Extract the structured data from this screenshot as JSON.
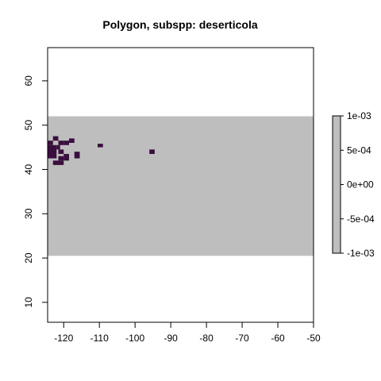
{
  "chart_data": {
    "type": "heatmap",
    "title": "Polygon, subspp: deserticola",
    "xlabel": "",
    "ylabel": "",
    "xlim": [
      -124.5,
      -50
    ],
    "ylim": [
      5.5,
      67.5
    ],
    "x_ticks": [
      -120,
      -110,
      -100,
      -90,
      -80,
      -70,
      -60,
      -50
    ],
    "y_ticks": [
      10,
      20,
      30,
      40,
      50,
      60
    ],
    "x_tick_labels": [
      "-120",
      "-110",
      "-100",
      "-90",
      "-80",
      "-70",
      "-60",
      "-50"
    ],
    "y_tick_labels": [
      "10",
      "20",
      "30",
      "40",
      "50",
      "60"
    ],
    "grid": false,
    "raster_extent": {
      "xmin": -124.5,
      "xmax": -50,
      "ymin": 20.5,
      "ymax": 52
    },
    "background_value": 0,
    "background_color": "#bebebe",
    "presence_color": "#3a0f3e",
    "presence_color_alt": "#440154",
    "presence_cells": [
      {
        "x0": -124.5,
        "x1": -123,
        "y0": 45.5,
        "y1": 46.5
      },
      {
        "x0": -124.5,
        "x1": -122,
        "y0": 42.5,
        "y1": 45.5
      },
      {
        "x0": -122,
        "x1": -121,
        "y0": 44.5,
        "y1": 45.5
      },
      {
        "x0": -123,
        "x1": -121.5,
        "y0": 46.5,
        "y1": 47.5
      },
      {
        "x0": -121.5,
        "x1": -120,
        "y0": 45.5,
        "y1": 46.5
      },
      {
        "x0": -120,
        "x1": -118.5,
        "y0": 45.5,
        "y1": 46.5
      },
      {
        "x0": -118.5,
        "x1": -117,
        "y0": 46,
        "y1": 47
      },
      {
        "x0": -121.5,
        "x1": -120,
        "y0": 43.5,
        "y1": 44.5
      },
      {
        "x0": -121.5,
        "x1": -120,
        "y0": 42,
        "y1": 43
      },
      {
        "x0": -120,
        "x1": -118.5,
        "y0": 42,
        "y1": 43.5
      },
      {
        "x0": -123,
        "x1": -120,
        "y0": 41,
        "y1": 42
      },
      {
        "x0": -117,
        "x1": -115.5,
        "y0": 42.5,
        "y1": 44
      },
      {
        "x0": -110.5,
        "x1": -109,
        "y0": 45,
        "y1": 45.8
      },
      {
        "x0": -96,
        "x1": -94.5,
        "y0": 43.5,
        "y1": 44.5
      }
    ],
    "legend": {
      "position": "right",
      "ticks": [
        "1e-03",
        "5e-04",
        "0e+00",
        "-5e-04",
        "-1e-03"
      ],
      "range": [
        -0.001,
        0.001
      ],
      "color": "#bebebe"
    }
  }
}
